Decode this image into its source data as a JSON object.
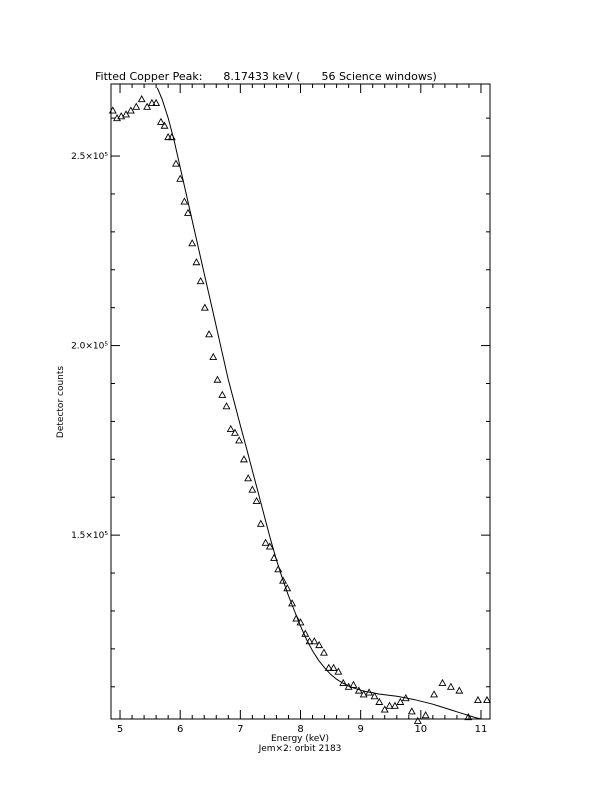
{
  "chart_data": {
    "type": "scatter",
    "title": "Fitted Copper Peak:      8.17433 keV (      56 Science windows)",
    "xlabel": "Energy (keV)",
    "ylabel": "Detector counts",
    "footer": "Jem×2: orbit 2183",
    "xlim": [
      4.85,
      11.15
    ],
    "ylim": [
      101500,
      269000
    ],
    "x_ticks": [
      {
        "value": 5,
        "label": "5"
      },
      {
        "value": 6,
        "label": "6"
      },
      {
        "value": 7,
        "label": "7"
      },
      {
        "value": 8,
        "label": "8"
      },
      {
        "value": 9,
        "label": "9"
      },
      {
        "value": 10,
        "label": "10"
      },
      {
        "value": 11,
        "label": "11"
      }
    ],
    "y_ticks": [
      {
        "value": 150000,
        "label": "1.5×10⁵"
      },
      {
        "value": 200000,
        "label": "2.0×10⁵"
      },
      {
        "value": 250000,
        "label": "2.5×10⁵"
      }
    ],
    "series": [
      {
        "style": "triangle-markers",
        "x": [
          4.88,
          4.95,
          5.02,
          5.1,
          5.18,
          5.27,
          5.36,
          5.45,
          5.53,
          5.6,
          5.68,
          5.74,
          5.8,
          5.86,
          5.93,
          6.0,
          6.07,
          6.13,
          6.2,
          6.27,
          6.34,
          6.41,
          6.48,
          6.55,
          6.62,
          6.7,
          6.77,
          6.84,
          6.91,
          6.98,
          7.06,
          7.13,
          7.2,
          7.27,
          7.34,
          7.42,
          7.49,
          7.56,
          7.63,
          7.71,
          7.78,
          7.86,
          7.93,
          8.0,
          8.08,
          8.15,
          8.23,
          8.31,
          8.39,
          8.47,
          8.55,
          8.63,
          8.71,
          8.8,
          8.88,
          8.97,
          9.05,
          9.14,
          9.23,
          9.31,
          9.4,
          9.48,
          9.57,
          9.66,
          9.75,
          9.85,
          9.95,
          10.08,
          10.22,
          10.36,
          10.5,
          10.64,
          10.79,
          10.95,
          11.1
        ],
        "y": [
          262000,
          260000,
          260500,
          261000,
          262000,
          263000,
          265000,
          263000,
          264000,
          264000,
          259000,
          258000,
          255000,
          255000,
          248000,
          244000,
          238000,
          235000,
          227000,
          222000,
          217000,
          210000,
          203000,
          197000,
          191000,
          187000,
          184000,
          178000,
          177000,
          175000,
          170000,
          165000,
          162000,
          159000,
          153000,
          148000,
          147000,
          144000,
          141000,
          138000,
          136000,
          132000,
          128000,
          127000,
          124000,
          122000,
          122000,
          121000,
          119000,
          115000,
          115000,
          114000,
          111000,
          110000,
          110500,
          109000,
          108000,
          108500,
          107500,
          106000,
          104000,
          105000,
          105000,
          106000,
          107000,
          103500,
          101000,
          102500,
          108000,
          111000,
          110000,
          109000,
          102000,
          106500,
          106500
        ]
      },
      {
        "style": "fit-line",
        "x": [
          5.62,
          5.7,
          5.8,
          5.9,
          6.0,
          6.1,
          6.2,
          6.3,
          6.4,
          6.5,
          6.6,
          6.7,
          6.8,
          6.9,
          7.0,
          7.1,
          7.2,
          7.3,
          7.4,
          7.5,
          7.6,
          7.7,
          7.8,
          7.9,
          8.0,
          8.1,
          8.2,
          8.3,
          8.4,
          8.5,
          8.6,
          8.7,
          8.8,
          8.9,
          9.0,
          9.1,
          9.2,
          9.3,
          9.4,
          9.5,
          9.6,
          9.7,
          9.8,
          9.9,
          10.0,
          10.1,
          10.2,
          10.3,
          10.4,
          10.5,
          10.6,
          10.7,
          10.8,
          10.9,
          11.0
        ],
        "y": [
          268000,
          265000,
          260000,
          254000,
          247000,
          240000,
          233000,
          226000,
          219000,
          212000,
          205000,
          198000,
          191000,
          185000,
          179000,
          173000,
          167000,
          161000,
          155000,
          149000,
          143500,
          138500,
          134000,
          130000,
          126000,
          122500,
          119500,
          117000,
          115000,
          113300,
          112000,
          111000,
          110200,
          109600,
          109100,
          108700,
          108400,
          108100,
          107900,
          107700,
          107500,
          107200,
          106900,
          106600,
          106200,
          105800,
          105400,
          104900,
          104400,
          103900,
          103400,
          102900,
          102400,
          101900,
          101500
        ]
      }
    ]
  }
}
